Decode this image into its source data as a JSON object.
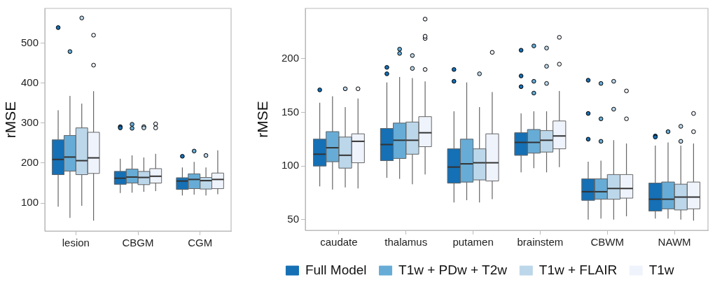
{
  "chart_data": [
    {
      "type": "box",
      "ylabel": "rMSE",
      "categories": [
        "lesion",
        "CBGM",
        "CGM"
      ],
      "ylim": [
        30,
        587
      ],
      "yticks": [
        100,
        200,
        300,
        400,
        500
      ],
      "grid": false,
      "series": [
        {
          "color": "#1570b5",
          "boxes": [
            {
              "low": 91,
              "q1": 171,
              "median": 209,
              "q3": 258,
              "high": 332,
              "outliers": [
                539
              ]
            },
            {
              "low": 125,
              "q1": 147,
              "median": 162,
              "q3": 179,
              "high": 211,
              "outliers": [
                291,
                288
              ]
            },
            {
              "low": 119,
              "q1": 134,
              "median": 155,
              "q3": 163,
              "high": 189,
              "outliers": [
                217
              ]
            }
          ]
        },
        {
          "color": "#67acd6",
          "boxes": [
            {
              "low": 63,
              "q1": 180,
              "median": 215,
              "q3": 269,
              "high": 368,
              "outliers": [
                479
              ]
            },
            {
              "low": 126,
              "q1": 150,
              "median": 165,
              "q3": 185,
              "high": 219,
              "outliers": [
                297,
                287
              ]
            },
            {
              "low": 121,
              "q1": 136,
              "median": 159,
              "q3": 173,
              "high": 203,
              "outliers": [
                230
              ]
            }
          ]
        },
        {
          "color": "#bcd7ea",
          "boxes": [
            {
              "low": 93,
              "q1": 171,
              "median": 206,
              "q3": 288,
              "high": 349,
              "outliers": [
                563
              ]
            },
            {
              "low": 128,
              "q1": 146,
              "median": 164,
              "q3": 179,
              "high": 214,
              "outliers": [
                291,
                288
              ]
            },
            {
              "low": 119,
              "q1": 135,
              "median": 156,
              "q3": 164,
              "high": 189,
              "outliers": [
                219
              ]
            }
          ]
        },
        {
          "color": "#eff3fb",
          "boxes": [
            {
              "low": 56,
              "q1": 174,
              "median": 213,
              "q3": 277,
              "high": 380,
              "outliers": [
                520,
                445
              ]
            },
            {
              "low": 130,
              "q1": 150,
              "median": 167,
              "q3": 186,
              "high": 223,
              "outliers": [
                298,
                288
              ]
            },
            {
              "low": 122,
              "q1": 136,
              "median": 159,
              "q3": 175,
              "high": 232
            }
          ]
        }
      ]
    },
    {
      "type": "box",
      "ylabel": "rMSE",
      "categories": [
        "caudate",
        "thalamus",
        "putamen",
        "brainstem",
        "CBWM",
        "NAWM"
      ],
      "ylim": [
        40,
        247
      ],
      "yticks": [
        50,
        100,
        150,
        200
      ],
      "grid": false,
      "legend": "bottom",
      "series": [
        {
          "name": "Full Model",
          "color": "#1570b5",
          "boxes": [
            {
              "low": 81,
              "q1": 100,
              "median": 111,
              "q3": 125,
              "high": 159,
              "outliers": [
                171
              ]
            },
            {
              "low": 89,
              "q1": 105,
              "median": 120,
              "q3": 135,
              "high": 178,
              "outliers": [
                186,
                192
              ]
            },
            {
              "low": 66,
              "q1": 84,
              "median": 99,
              "q3": 116,
              "high": 151,
              "outliers": [
                179,
                190
              ]
            },
            {
              "low": 94,
              "q1": 110,
              "median": 122,
              "q3": 131,
              "high": 149,
              "outliers": [
                208,
                184,
                174
              ]
            },
            {
              "low": 50,
              "q1": 68,
              "median": 76,
              "q3": 88,
              "high": 104,
              "outliers": [
                180,
                149,
                125
              ]
            },
            {
              "low": 51,
              "q1": 58,
              "median": 69,
              "q3": 84,
              "high": 119,
              "outliers": [
                128,
                127
              ]
            }
          ]
        },
        {
          "name": "T1w + PDw + T2w",
          "color": "#67acd6",
          "boxes": [
            {
              "low": 78,
              "q1": 104,
              "median": 117,
              "q3": 132,
              "high": 165
            },
            {
              "low": 88,
              "q1": 107,
              "median": 124,
              "q3": 140,
              "high": 183,
              "outliers": [
                205,
                209
              ]
            },
            {
              "low": 68,
              "q1": 85,
              "median": 102,
              "q3": 125,
              "high": 178
            },
            {
              "low": 98,
              "q1": 112,
              "median": 122,
              "q3": 134,
              "high": 151,
              "outliers": [
                212,
                179,
                168
              ]
            },
            {
              "low": 51,
              "q1": 69,
              "median": 76,
              "q3": 88,
              "high": 105,
              "outliers": [
                177,
                144,
                123
              ]
            },
            {
              "low": 51,
              "q1": 60,
              "median": 69,
              "q3": 85,
              "high": 122,
              "outliers": [
                132
              ]
            }
          ]
        },
        {
          "name": "T1w + FLAIR",
          "color": "#bcd7ea",
          "boxes": [
            {
              "low": 80,
              "q1": 98,
              "median": 110,
              "q3": 127,
              "high": 155,
              "outliers": [
                172
              ]
            },
            {
              "low": 83,
              "q1": 111,
              "median": 124,
              "q3": 141,
              "high": 182,
              "outliers": [
                191,
                203
              ]
            },
            {
              "low": 66,
              "q1": 87,
              "median": 103,
              "q3": 116,
              "high": 155,
              "outliers": [
                186
              ]
            },
            {
              "low": 94,
              "q1": 113,
              "median": 124,
              "q3": 133,
              "high": 151,
              "outliers": [
                210,
                193,
                177
              ]
            },
            {
              "low": 50,
              "q1": 69,
              "median": 79,
              "q3": 92,
              "high": 124,
              "outliers": [
                179,
                153
              ]
            },
            {
              "low": 50,
              "q1": 59,
              "median": 71,
              "q3": 83,
              "high": 119,
              "outliers": [
                137,
                123
              ]
            }
          ]
        },
        {
          "name": "T1w",
          "color": "#eff3fb",
          "boxes": [
            {
              "low": 79,
              "q1": 103,
              "median": 123,
              "q3": 130,
              "high": 163,
              "outliers": [
                172
              ]
            },
            {
              "low": 92,
              "q1": 118,
              "median": 131,
              "q3": 146,
              "high": 179,
              "outliers": [
                190,
                219,
                221,
                237
              ]
            },
            {
              "low": 69,
              "q1": 86,
              "median": 103,
              "q3": 130,
              "high": 169,
              "outliers": [
                206
              ]
            },
            {
              "low": 99,
              "q1": 116,
              "median": 128,
              "q3": 142,
              "high": 170,
              "outliers": [
                220,
                195
              ]
            },
            {
              "low": 53,
              "q1": 70,
              "median": 79,
              "q3": 92,
              "high": 121,
              "outliers": [
                170,
                144
              ]
            },
            {
              "low": 49,
              "q1": 60,
              "median": 71,
              "q3": 85,
              "high": 121,
              "outliers": [
                149,
                132
              ]
            }
          ]
        }
      ]
    }
  ]
}
